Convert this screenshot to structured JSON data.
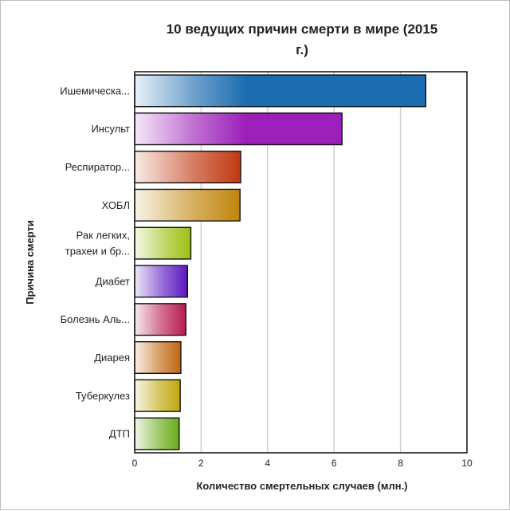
{
  "chart_data": {
    "type": "bar",
    "orientation": "horizontal",
    "title": "10 ведущих причин смерти в мире (2015 г.)",
    "title_lines": [
      "10 ведущих причин смерти в мире (2015",
      "г.)"
    ],
    "xlabel": "Количество смертельных случаев (млн.)",
    "ylabel": "Причина смерти",
    "xlim": [
      0,
      10
    ],
    "xticks": [
      0,
      2,
      4,
      6,
      8,
      10
    ],
    "grid": "vertical",
    "categories": [
      [
        "Ишемическа..."
      ],
      [
        "Инсульт"
      ],
      [
        "Респиратор..."
      ],
      [
        "ХОБЛ"
      ],
      [
        "Рак легких,",
        "трахеи и бр..."
      ],
      [
        "Диабет"
      ],
      [
        "Болезнь Аль..."
      ],
      [
        "Диарея"
      ],
      [
        "Туберкулез"
      ],
      [
        "ДТП"
      ]
    ],
    "values": [
      8.76,
      6.24,
      3.19,
      3.17,
      1.69,
      1.59,
      1.54,
      1.39,
      1.37,
      1.34
    ],
    "colors": [
      "#1b6cb0",
      "#9b1fb8",
      "#c0390f",
      "#c0860c",
      "#9cc011",
      "#5a18c0",
      "#b81b50",
      "#c0660f",
      "#c0a70f",
      "#6aac18"
    ]
  }
}
